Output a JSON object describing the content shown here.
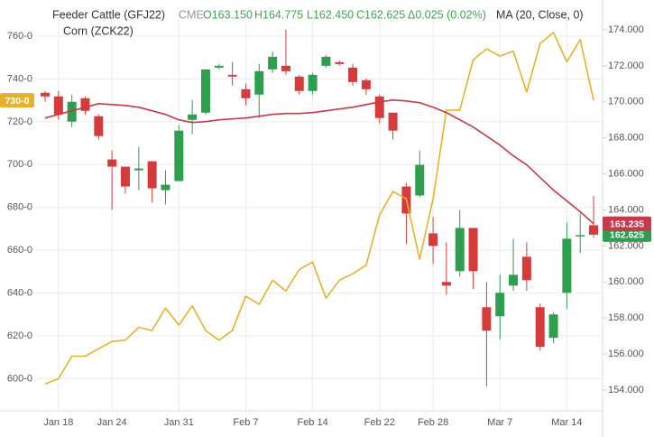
{
  "chart_data": {
    "type": "candlestick",
    "header": {
      "exchange": "CME",
      "open": "O163.150",
      "high": "H164.775",
      "low": "L162.450",
      "close": "C162.625",
      "change": "Δ0.025 (0.02%)"
    },
    "categories": [
      null,
      "Jan 18",
      null,
      null,
      null,
      "Jan 24",
      null,
      null,
      null,
      null,
      "Jan 31",
      null,
      null,
      null,
      null,
      "Feb 7",
      null,
      null,
      null,
      null,
      "Feb 14",
      null,
      null,
      null,
      null,
      "Feb 22",
      null,
      null,
      null,
      "Feb 28",
      null,
      null,
      null,
      null,
      "Mar 7",
      null,
      null,
      null,
      null,
      "Mar 14",
      null,
      null
    ],
    "series": [
      {
        "name": "Feeder Cattle (GFJ22)",
        "type": "candlestick",
        "axis": "y2",
        "up_color": "#2e9e4f",
        "down_color": "#d63b3b",
        "last_label": "162.625",
        "open": [
          170.5,
          170.3,
          168.9,
          170.2,
          169.2,
          166.8,
          166.4,
          166.2,
          166.7,
          165.1,
          165.6,
          169.0,
          169.4,
          171.9,
          171.5,
          170.7,
          170.4,
          171.8,
          172.0,
          171.4,
          170.6,
          172.0,
          172.2,
          171.9,
          171.2,
          170.3,
          169.4,
          165.3,
          164.8,
          162.7,
          160.0,
          160.6,
          163.0,
          158.6,
          158.1,
          159.8,
          161.4,
          158.6,
          156.9,
          159.4,
          162.6,
          163.15
        ],
        "high": [
          170.6,
          170.6,
          170.4,
          170.3,
          169.3,
          167.3,
          166.4,
          167.5,
          166.7,
          166.2,
          168.7,
          170.1,
          171.8,
          172.1,
          172.2,
          171.0,
          172.1,
          172.8,
          174.0,
          171.5,
          171.6,
          172.6,
          172.3,
          172.1,
          171.3,
          170.4,
          169.4,
          165.5,
          167.3,
          163.6,
          162.2,
          164.0,
          163.0,
          160.0,
          160.4,
          162.4,
          162.2,
          158.8,
          158.3,
          163.3,
          163.8,
          164.775
        ],
        "low": [
          170.0,
          169.0,
          168.6,
          169.3,
          167.9,
          164.0,
          164.9,
          165.1,
          164.4,
          164.3,
          165.6,
          168.2,
          169.3,
          171.8,
          170.9,
          169.8,
          169.1,
          171.6,
          171.5,
          170.4,
          170.4,
          171.9,
          172.0,
          170.9,
          170.4,
          168.8,
          167.9,
          162.1,
          164.7,
          161.0,
          159.3,
          160.3,
          159.6,
          154.2,
          156.8,
          159.5,
          159.5,
          156.2,
          156.6,
          158.5,
          161.6,
          162.45
        ],
        "close": [
          170.3,
          169.3,
          170.0,
          169.5,
          168.1,
          166.4,
          165.3,
          166.3,
          165.2,
          165.4,
          168.4,
          169.3,
          171.8,
          172.0,
          171.4,
          170.2,
          171.7,
          172.5,
          171.7,
          170.6,
          171.5,
          172.5,
          172.1,
          171.1,
          170.7,
          169.1,
          168.4,
          163.8,
          166.5,
          162.0,
          159.8,
          163.0,
          160.6,
          157.3,
          159.4,
          160.4,
          160.1,
          156.4,
          158.2,
          162.4,
          162.6,
          162.625
        ]
      },
      {
        "name": "Corn (ZCK22)",
        "type": "line",
        "color": "#e5b22a",
        "last_label": "730-0",
        "values": [
          597.5,
          600,
          610.5,
          610.5,
          614,
          617.4,
          618,
          624,
          622.5,
          633,
          625,
          634,
          622.5,
          618,
          622.5,
          638.5,
          634.7,
          646,
          641,
          651,
          654.5,
          637.6,
          646,
          649,
          653,
          676.5,
          687.4,
          684,
          655.8,
          684,
          725.4,
          725.4,
          749,
          754,
          750.7,
          753,
          733.8,
          756.6,
          761.7,
          748,
          758.3,
          730
        ]
      },
      {
        "name": "MA (20, Close, 0)",
        "type": "line",
        "axis": "y2",
        "color": "#c43a4b",
        "last_label": "163.235",
        "values": [
          169.1,
          169.3,
          169.5,
          169.7,
          169.9,
          169.85,
          169.8,
          169.7,
          169.5,
          169.3,
          169.0,
          168.85,
          168.9,
          169.0,
          169.05,
          169.1,
          169.2,
          169.3,
          169.35,
          169.35,
          169.4,
          169.5,
          169.6,
          169.7,
          169.85,
          170.0,
          170.1,
          170.05,
          169.95,
          169.7,
          169.4,
          169.0,
          168.6,
          168.1,
          167.6,
          167.0,
          166.5,
          165.8,
          165.1,
          164.5,
          163.9,
          163.235
        ]
      }
    ],
    "ylim": [
      585,
      773.5
    ],
    "yticks": [
      {
        "value": 600,
        "label": "600-0"
      },
      {
        "value": 620,
        "label": "620-0"
      },
      {
        "value": 640,
        "label": "640-0"
      },
      {
        "value": 660,
        "label": "660-0"
      },
      {
        "value": 680,
        "label": "680-0"
      },
      {
        "value": 700,
        "label": "700-0"
      },
      {
        "value": 720,
        "label": "720-0"
      },
      {
        "value": 740,
        "label": "740-0"
      },
      {
        "value": 760,
        "label": "760-0"
      }
    ],
    "y2lim": [
      152.85,
      175.25
    ],
    "y2ticks": [
      {
        "value": 154,
        "label": "154.000"
      },
      {
        "value": 156,
        "label": "156.000"
      },
      {
        "value": 158,
        "label": "158.000"
      },
      {
        "value": 160,
        "label": "160.000"
      },
      {
        "value": 162,
        "label": "162.000"
      },
      {
        "value": 164,
        "label": "164.000"
      },
      {
        "value": 166,
        "label": "166.000"
      },
      {
        "value": 168,
        "label": "168.000"
      },
      {
        "value": 170,
        "label": "170.000"
      },
      {
        "value": 172,
        "label": "172.000"
      },
      {
        "value": 174,
        "label": "174.000"
      }
    ],
    "grid": true
  }
}
